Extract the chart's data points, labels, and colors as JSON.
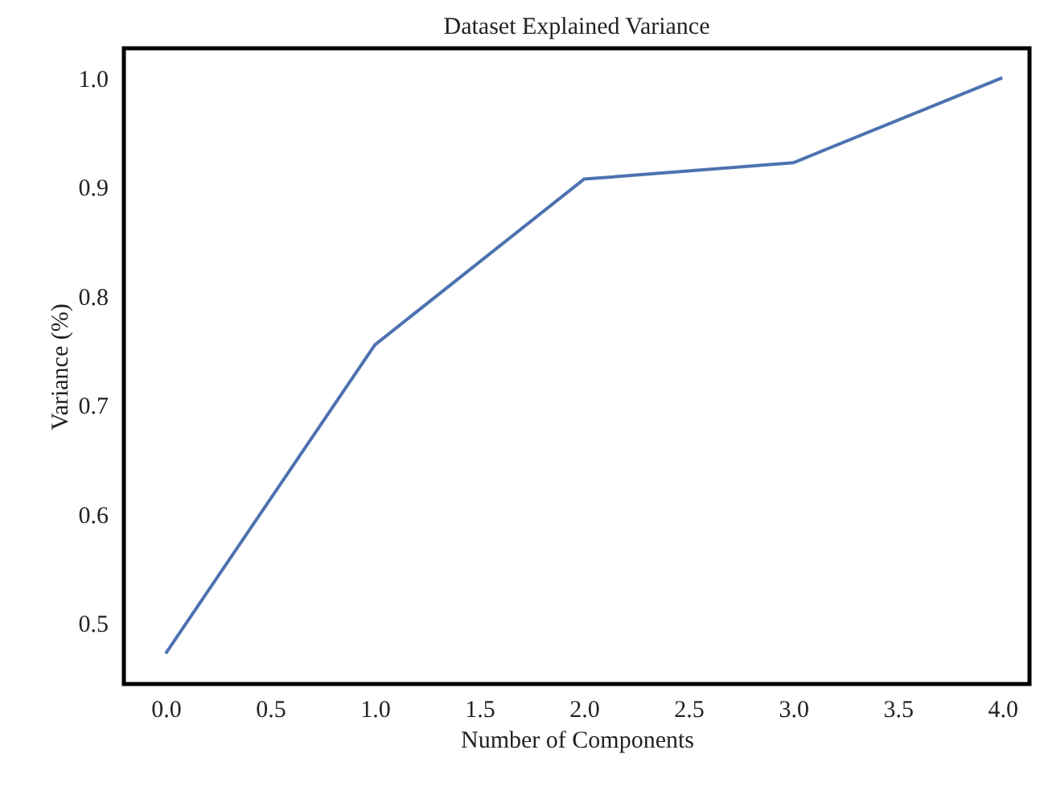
{
  "chart_data": {
    "type": "line",
    "title": "Dataset Explained Variance",
    "xlabel": "Number of Components",
    "ylabel": "Variance (%)",
    "x": [
      0,
      1,
      2,
      3,
      4
    ],
    "series": [
      {
        "color": "#4c72b0",
        "values": [
          0.472,
          0.755,
          0.907,
          0.922,
          1.0
        ]
      }
    ],
    "xlim": [
      -0.2,
      4.13
    ],
    "ylim": [
      0.444,
      1.027
    ],
    "xticks": [
      {
        "value": 0,
        "label": "0.0"
      },
      0.5,
      {
        "value": 1,
        "label": "1.0"
      },
      1.5,
      {
        "value": 2,
        "label": "2.0"
      },
      2.5,
      {
        "value": 3,
        "label": "3.0"
      },
      3.5,
      {
        "value": 4,
        "label": "4.0"
      }
    ],
    "yticks": [
      0.5,
      0.6,
      0.7,
      0.8,
      0.9,
      {
        "value": 1,
        "label": "1.0"
      }
    ],
    "grid": false,
    "marker": "none",
    "line_style": "solid"
  }
}
